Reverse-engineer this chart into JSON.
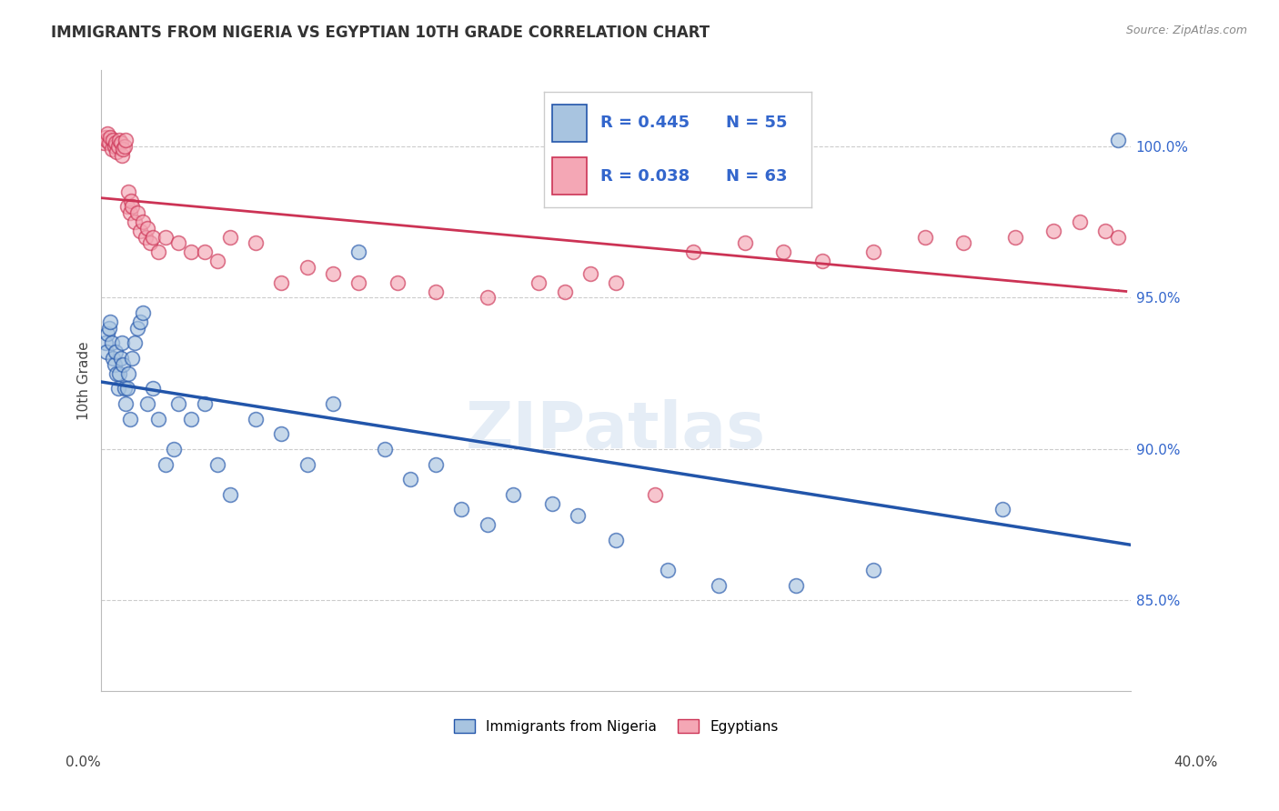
{
  "title": "IMMIGRANTS FROM NIGERIA VS EGYPTIAN 10TH GRADE CORRELATION CHART",
  "source": "Source: ZipAtlas.com",
  "ylabel": "10th Grade",
  "yticks": [
    85.0,
    90.0,
    95.0,
    100.0
  ],
  "ytick_labels": [
    "85.0%",
    "90.0%",
    "95.0%",
    "100.0%"
  ],
  "xmin": 0.0,
  "xmax": 40.0,
  "ymin": 82.0,
  "ymax": 102.5,
  "legend_line1_r": "R = 0.445",
  "legend_line1_n": "N = 55",
  "legend_line2_r": "R = 0.038",
  "legend_line2_n": "N = 63",
  "legend_label1": "Immigrants from Nigeria",
  "legend_label2": "Egyptians",
  "blue_color": "#A8C4E0",
  "pink_color": "#F4A7B5",
  "blue_line_color": "#2255AA",
  "pink_line_color": "#CC3355",
  "nigeria_x": [
    0.15,
    0.2,
    0.25,
    0.3,
    0.35,
    0.4,
    0.45,
    0.5,
    0.55,
    0.6,
    0.65,
    0.7,
    0.75,
    0.8,
    0.85,
    0.9,
    0.95,
    1.0,
    1.05,
    1.1,
    1.2,
    1.3,
    1.4,
    1.5,
    1.6,
    1.8,
    2.0,
    2.2,
    2.5,
    2.8,
    3.0,
    3.5,
    4.0,
    4.5,
    5.0,
    6.0,
    7.0,
    8.0,
    9.0,
    10.0,
    11.0,
    12.0,
    13.0,
    14.0,
    15.0,
    16.0,
    17.5,
    18.5,
    20.0,
    22.0,
    24.0,
    27.0,
    30.0,
    35.0,
    39.5
  ],
  "nigeria_y": [
    93.5,
    93.2,
    93.8,
    94.0,
    94.2,
    93.5,
    93.0,
    92.8,
    93.2,
    92.5,
    92.0,
    92.5,
    93.0,
    93.5,
    92.8,
    92.0,
    91.5,
    92.0,
    92.5,
    91.0,
    93.0,
    93.5,
    94.0,
    94.2,
    94.5,
    91.5,
    92.0,
    91.0,
    89.5,
    90.0,
    91.5,
    91.0,
    91.5,
    89.5,
    88.5,
    91.0,
    90.5,
    89.5,
    91.5,
    96.5,
    90.0,
    89.0,
    89.5,
    88.0,
    87.5,
    88.5,
    88.2,
    87.8,
    87.0,
    86.0,
    85.5,
    85.5,
    86.0,
    88.0,
    100.2
  ],
  "egypt_x": [
    0.1,
    0.15,
    0.2,
    0.25,
    0.3,
    0.35,
    0.4,
    0.45,
    0.5,
    0.55,
    0.6,
    0.65,
    0.7,
    0.75,
    0.8,
    0.85,
    0.9,
    0.95,
    1.0,
    1.05,
    1.1,
    1.15,
    1.2,
    1.3,
    1.4,
    1.5,
    1.6,
    1.7,
    1.8,
    1.9,
    2.0,
    2.2,
    2.5,
    3.0,
    3.5,
    4.0,
    4.5,
    5.0,
    6.0,
    7.0,
    8.0,
    9.0,
    10.0,
    11.5,
    13.0,
    15.0,
    17.0,
    18.0,
    19.0,
    20.0,
    21.5,
    23.0,
    25.0,
    26.5,
    28.0,
    30.0,
    32.0,
    33.5,
    35.5,
    37.0,
    38.0,
    39.0,
    39.5
  ],
  "egypt_y": [
    100.1,
    100.3,
    100.2,
    100.4,
    100.1,
    100.3,
    99.9,
    100.2,
    100.0,
    100.1,
    99.8,
    100.0,
    100.2,
    100.1,
    99.7,
    99.9,
    100.0,
    100.2,
    98.0,
    98.5,
    97.8,
    98.2,
    98.0,
    97.5,
    97.8,
    97.2,
    97.5,
    97.0,
    97.3,
    96.8,
    97.0,
    96.5,
    97.0,
    96.8,
    96.5,
    96.5,
    96.2,
    97.0,
    96.8,
    95.5,
    96.0,
    95.8,
    95.5,
    95.5,
    95.2,
    95.0,
    95.5,
    95.2,
    95.8,
    95.5,
    88.5,
    96.5,
    96.8,
    96.5,
    96.2,
    96.5,
    97.0,
    96.8,
    97.0,
    97.2,
    97.5,
    97.2,
    97.0
  ]
}
